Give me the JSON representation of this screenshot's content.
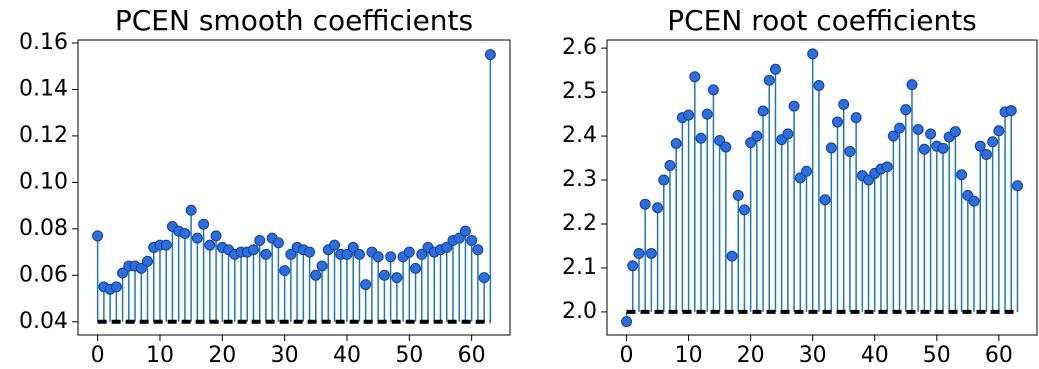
{
  "chart_data": [
    {
      "type": "stem",
      "title": "PCEN smooth coefficients",
      "x": [
        0,
        1,
        2,
        3,
        4,
        5,
        6,
        7,
        8,
        9,
        10,
        11,
        12,
        13,
        14,
        15,
        16,
        17,
        18,
        19,
        20,
        21,
        22,
        23,
        24,
        25,
        26,
        27,
        28,
        29,
        30,
        31,
        32,
        33,
        34,
        35,
        36,
        37,
        38,
        39,
        40,
        41,
        42,
        43,
        44,
        45,
        46,
        47,
        48,
        49,
        50,
        51,
        52,
        53,
        54,
        55,
        56,
        57,
        58,
        59,
        60,
        61,
        62,
        63
      ],
      "values": [
        0.077,
        0.055,
        0.054,
        0.055,
        0.061,
        0.064,
        0.064,
        0.063,
        0.066,
        0.072,
        0.073,
        0.073,
        0.081,
        0.079,
        0.078,
        0.088,
        0.076,
        0.082,
        0.073,
        0.077,
        0.072,
        0.071,
        0.069,
        0.07,
        0.07,
        0.071,
        0.075,
        0.069,
        0.076,
        0.074,
        0.062,
        0.069,
        0.072,
        0.071,
        0.07,
        0.06,
        0.064,
        0.071,
        0.073,
        0.069,
        0.069,
        0.072,
        0.069,
        0.056,
        0.07,
        0.068,
        0.06,
        0.068,
        0.059,
        0.068,
        0.07,
        0.063,
        0.069,
        0.072,
        0.07,
        0.071,
        0.072,
        0.075,
        0.076,
        0.079,
        0.075,
        0.071,
        0.059,
        0.155
      ],
      "baseline": 0.04,
      "color": "#1f77b4",
      "marker_color": "#2a6fdb",
      "xlim": [
        -3.15,
        66.15
      ],
      "xticks": [
        0,
        10,
        20,
        30,
        40,
        50,
        60
      ],
      "ylim": [
        0.0343,
        0.1613
      ],
      "yticks": [
        0.04,
        0.06,
        0.08,
        {
          "value": 0.1,
          "label": "0.10"
        },
        0.12,
        0.14,
        0.16
      ]
    },
    {
      "type": "stem",
      "title": "PCEN root coefficients",
      "x": [
        0,
        1,
        2,
        3,
        4,
        5,
        6,
        7,
        8,
        9,
        10,
        11,
        12,
        13,
        14,
        15,
        16,
        17,
        18,
        19,
        20,
        21,
        22,
        23,
        24,
        25,
        26,
        27,
        28,
        29,
        30,
        31,
        32,
        33,
        34,
        35,
        36,
        37,
        38,
        39,
        40,
        41,
        42,
        43,
        44,
        45,
        46,
        47,
        48,
        49,
        50,
        51,
        52,
        53,
        54,
        55,
        56,
        57,
        58,
        59,
        60,
        61,
        62,
        63
      ],
      "values": [
        1.978,
        2.105,
        2.133,
        2.245,
        2.133,
        2.237,
        2.3,
        2.333,
        2.383,
        2.442,
        2.448,
        2.535,
        2.395,
        2.45,
        2.505,
        2.39,
        2.375,
        2.127,
        2.265,
        2.232,
        2.385,
        2.4,
        2.457,
        2.527,
        2.552,
        2.392,
        2.405,
        2.468,
        2.305,
        2.32,
        2.587,
        2.515,
        2.255,
        2.373,
        2.432,
        2.472,
        2.365,
        2.442,
        2.31,
        2.3,
        2.315,
        2.325,
        2.33,
        2.4,
        2.418,
        2.46,
        2.517,
        2.415,
        2.37,
        2.405,
        2.377,
        2.372,
        2.398,
        2.41,
        2.312,
        2.265,
        2.252,
        2.377,
        2.358,
        2.387,
        2.412,
        2.455,
        2.458,
        2.287
      ],
      "baseline": 2.0,
      "color": "#1f77b4",
      "marker_color": "#2a6fdb",
      "xlim": [
        -3.15,
        66.15
      ],
      "xticks": [
        0,
        10,
        20,
        30,
        40,
        50,
        60
      ],
      "ylim": [
        1.9475,
        2.6185
      ],
      "yticks": [
        {
          "value": 2.0,
          "label": "2.0"
        },
        2.1,
        2.2,
        2.3,
        2.4,
        2.5,
        2.6
      ]
    }
  ]
}
